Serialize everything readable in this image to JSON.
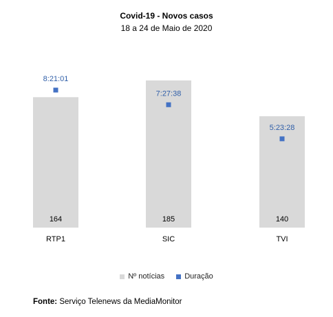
{
  "chart_data": {
    "type": "bar",
    "title": "Covid-19 - Novos casos",
    "subtitle": "18 a 24 de Maio de 2020",
    "categories": [
      "RTP1",
      "SIC",
      "TVI"
    ],
    "series": [
      {
        "name": "Nº notícias",
        "type": "bar",
        "color": "#d9d9d9",
        "values": [
          164,
          185,
          140
        ],
        "labels": [
          "164",
          "185",
          "140"
        ]
      },
      {
        "name": "Duração",
        "type": "marker",
        "color": "#4472c4",
        "values_seconds": [
          30061,
          26858,
          19408
        ],
        "labels": [
          "8:21:01",
          "7:27:38",
          "5:23:28"
        ]
      }
    ],
    "legend_position": "bottom",
    "grid": false
  },
  "source": {
    "label": "Fonte:",
    "text": "Serviço Telenews da MediaMonitor"
  }
}
